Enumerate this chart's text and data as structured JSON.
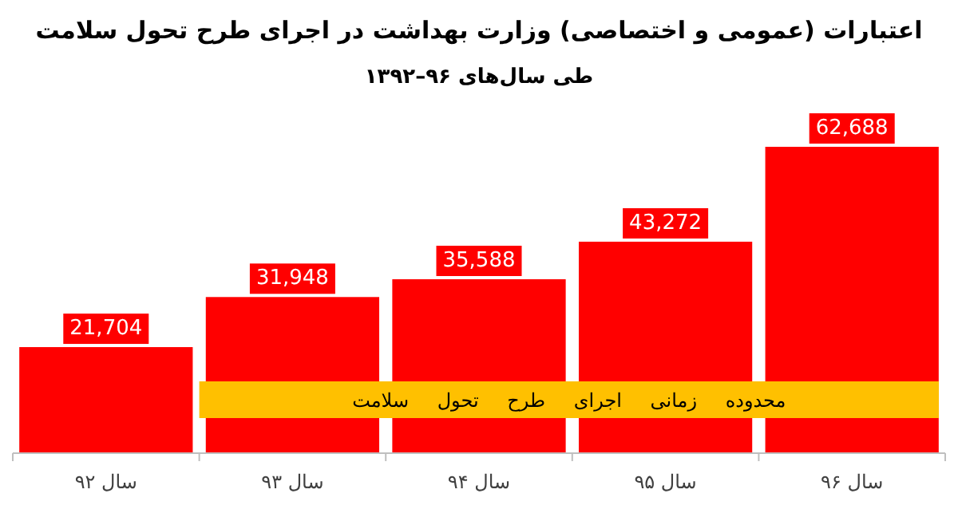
{
  "chart_data": {
    "type": "bar",
    "title": "اعتبارات (عمومی و اختصاصی) وزارت بهداشت در اجرای طرح تحول سلامت",
    "subtitle": "طی سال‌های ۹۶–۱۳۹۲",
    "categories": [
      "سال ۹۲",
      "سال ۹۳",
      "سال ۹۴",
      "سال ۹۵",
      "سال ۹۶"
    ],
    "values": [
      21704,
      31948,
      35588,
      43272,
      62688
    ],
    "value_labels": [
      "21,704",
      "31,948",
      "35,588",
      "43,272",
      "62,688"
    ],
    "color": "#ff0000",
    "bands": [
      {
        "axis": "x",
        "from": "سال ۹۳",
        "to": "سال ۹۶",
        "label": "محدوده زمانی اجرای طرح تحول سلامت",
        "color": "#ffc000"
      }
    ]
  }
}
